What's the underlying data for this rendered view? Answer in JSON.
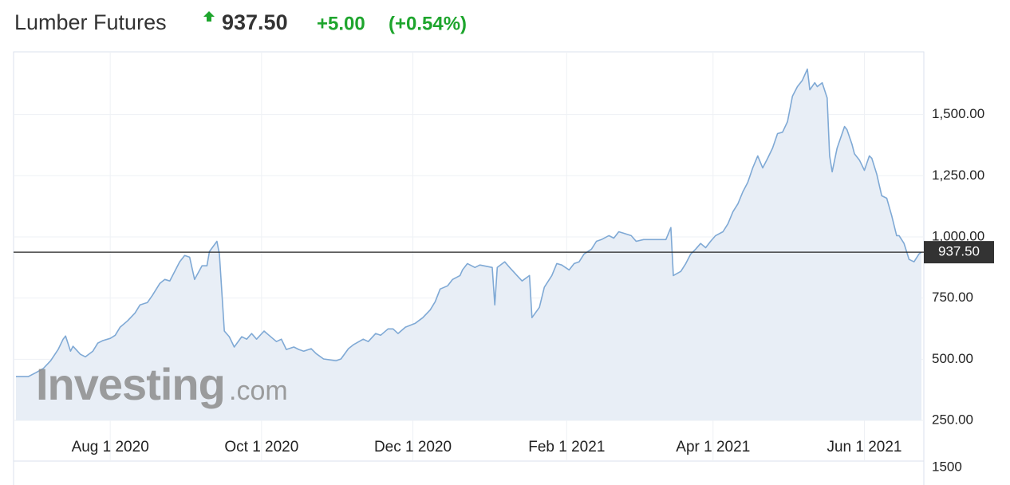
{
  "chart_data": {
    "type": "line",
    "title": "Lumber Futures",
    "last_price": "937.50",
    "change": "+5.00",
    "change_percent": "(+0.54%)",
    "watermark": {
      "brand": "Investing",
      "suffix": ".com"
    },
    "volume_ticks": [
      1500
    ],
    "x": [
      "2020-06-24",
      "2020-06-29",
      "2020-07-02",
      "2020-07-05",
      "2020-07-08",
      "2020-07-11",
      "2020-07-13",
      "2020-07-14",
      "2020-07-16",
      "2020-07-17",
      "2020-07-20",
      "2020-07-22",
      "2020-07-25",
      "2020-07-27",
      "2020-07-29",
      "2020-08-01",
      "2020-08-03",
      "2020-08-05",
      "2020-08-08",
      "2020-08-11",
      "2020-08-13",
      "2020-08-16",
      "2020-08-18",
      "2020-08-21",
      "2020-08-23",
      "2020-08-25",
      "2020-08-27",
      "2020-08-29",
      "2020-08-31",
      "2020-09-02",
      "2020-09-04",
      "2020-09-07",
      "2020-09-09",
      "2020-09-10",
      "2020-09-13",
      "2020-09-14",
      "2020-09-16",
      "2020-09-18",
      "2020-09-20",
      "2020-09-23",
      "2020-09-25",
      "2020-09-27",
      "2020-09-29",
      "2020-10-02",
      "2020-10-04",
      "2020-10-07",
      "2020-10-09",
      "2020-10-11",
      "2020-10-14",
      "2020-10-16",
      "2020-10-18",
      "2020-10-21",
      "2020-10-23",
      "2020-10-26",
      "2020-10-31",
      "2020-11-02",
      "2020-11-05",
      "2020-11-07",
      "2020-11-11",
      "2020-11-13",
      "2020-11-16",
      "2020-11-18",
      "2020-11-21",
      "2020-11-23",
      "2020-11-25",
      "2020-11-28",
      "2020-12-02",
      "2020-12-05",
      "2020-12-08",
      "2020-12-10",
      "2020-12-12",
      "2020-12-15",
      "2020-12-17",
      "2020-12-20",
      "2020-12-21",
      "2020-12-23",
      "2020-12-26",
      "2020-12-28",
      "2021-01-02",
      "2021-01-03",
      "2021-01-04",
      "2021-01-07",
      "2021-01-09",
      "2021-01-12",
      "2021-01-14",
      "2021-01-17",
      "2021-01-18",
      "2021-01-21",
      "2021-01-23",
      "2021-01-26",
      "2021-01-28",
      "2021-01-30",
      "2021-02-02",
      "2021-02-04",
      "2021-02-06",
      "2021-02-08",
      "2021-02-11",
      "2021-02-13",
      "2021-02-15",
      "2021-02-18",
      "2021-02-20",
      "2021-02-22",
      "2021-02-24",
      "2021-02-27",
      "2021-03-01",
      "2021-03-04",
      "2021-03-08",
      "2021-03-13",
      "2021-03-15",
      "2021-03-16",
      "2021-03-19",
      "2021-03-21",
      "2021-03-23",
      "2021-03-25",
      "2021-03-27",
      "2021-03-29",
      "2021-03-31",
      "2021-04-02",
      "2021-04-05",
      "2021-04-07",
      "2021-04-09",
      "2021-04-11",
      "2021-04-13",
      "2021-04-15",
      "2021-04-17",
      "2021-04-19",
      "2021-04-21",
      "2021-04-23",
      "2021-04-25",
      "2021-04-27",
      "2021-04-29",
      "2021-05-01",
      "2021-05-03",
      "2021-05-05",
      "2021-05-07",
      "2021-05-09",
      "2021-05-10",
      "2021-05-12",
      "2021-05-13",
      "2021-05-15",
      "2021-05-17",
      "2021-05-18",
      "2021-05-19",
      "2021-05-21",
      "2021-05-24",
      "2021-05-25",
      "2021-05-27",
      "2021-05-28",
      "2021-05-30",
      "2021-06-01",
      "2021-06-03",
      "2021-06-04",
      "2021-06-06",
      "2021-06-08",
      "2021-06-10",
      "2021-06-12",
      "2021-06-14",
      "2021-06-15",
      "2021-06-17",
      "2021-06-19",
      "2021-06-21",
      "2021-06-23",
      "2021-06-24"
    ],
    "series": [
      {
        "color": "#7fa9d5",
        "values": [
          429,
          429,
          445,
          462,
          494,
          540,
          582,
          595,
          533,
          553,
          520,
          510,
          533,
          566,
          576,
          585,
          598,
          631,
          657,
          689,
          722,
          732,
          761,
          810,
          826,
          820,
          859,
          898,
          924,
          917,
          826,
          882,
          882,
          940,
          982,
          930,
          615,
          592,
          550,
          592,
          582,
          605,
          582,
          615,
          598,
          572,
          582,
          540,
          550,
          540,
          533,
          543,
          523,
          501,
          494,
          501,
          543,
          559,
          582,
          572,
          605,
          598,
          624,
          624,
          605,
          631,
          647,
          670,
          702,
          735,
          787,
          800,
          826,
          842,
          865,
          891,
          875,
          885,
          875,
          722,
          875,
          898,
          875,
          842,
          820,
          842,
          670,
          712,
          794,
          842,
          891,
          885,
          865,
          891,
          898,
          930,
          950,
          982,
          989,
          1005,
          995,
          1021,
          1015,
          1005,
          982,
          989,
          989,
          989,
          1038,
          842,
          859,
          891,
          930,
          950,
          973,
          956,
          982,
          1005,
          1021,
          1054,
          1103,
          1135,
          1184,
          1223,
          1282,
          1331,
          1282,
          1321,
          1363,
          1422,
          1428,
          1471,
          1575,
          1614,
          1640,
          1686,
          1601,
          1630,
          1614,
          1630,
          1568,
          1331,
          1266,
          1363,
          1451,
          1438,
          1379,
          1340,
          1314,
          1272,
          1331,
          1321,
          1256,
          1168,
          1158,
          1087,
          1005,
          1005,
          973,
          908,
          898,
          930,
          937.5
        ]
      }
    ],
    "fill_color": "#e8eef6",
    "xlim": [
      "2020-06-24",
      "2021-06-24"
    ],
    "xticks": [
      {
        "value": "2020-08-01",
        "label": "Aug 1 2020"
      },
      {
        "value": "2020-10-01",
        "label": "Oct 1 2020"
      },
      {
        "value": "2020-12-01",
        "label": "Dec 1 2020"
      },
      {
        "value": "2021-02-01",
        "label": "Feb 1 2021"
      },
      {
        "value": "2021-04-01",
        "label": "Apr 1 2021"
      },
      {
        "value": "2021-06-01",
        "label": "Jun 1 2021"
      }
    ],
    "ylim": [
      250,
      1753
    ],
    "yticks": [
      {
        "value": 250,
        "label": "250.00"
      },
      {
        "value": 500,
        "label": "500.00"
      },
      {
        "value": 750,
        "label": "750.00"
      },
      {
        "value": 1000,
        "label": "1,000.00"
      },
      {
        "value": 1250,
        "label": "1,250.00"
      },
      {
        "value": 1500,
        "label": "1,500.00"
      }
    ],
    "grid": true
  }
}
